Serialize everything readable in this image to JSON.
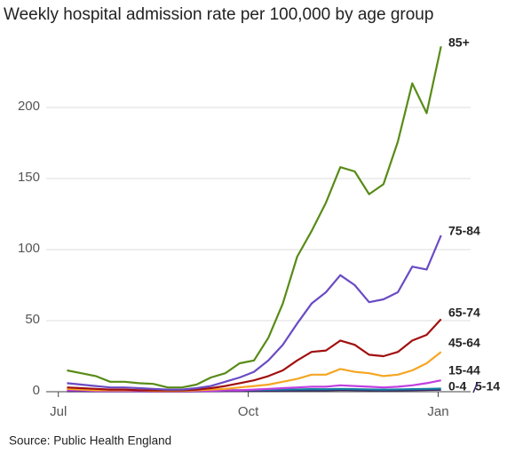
{
  "chart_data": {
    "type": "line",
    "title": "Weekly hospital admission rate per 100,000 by age group",
    "source": "Source: Public Health England",
    "x": [
      0,
      1,
      2,
      3,
      4,
      5,
      6,
      7,
      8,
      9,
      10,
      11,
      12,
      13,
      14,
      15,
      16,
      17,
      18,
      19,
      20,
      21,
      22,
      23,
      24,
      25,
      26
    ],
    "xlim": [
      -1.2,
      27.5
    ],
    "xticks": [
      {
        "value": -0.6,
        "label": "Jul"
      },
      {
        "value": 12.6,
        "label": "Oct"
      },
      {
        "value": 25.8,
        "label": "Jan"
      }
    ],
    "ylim": [
      0,
      250
    ],
    "yticks": [
      0,
      50,
      100,
      150,
      200
    ],
    "grid": true,
    "series": [
      {
        "name": "85+",
        "color": "#588b17",
        "values": [
          15,
          13,
          11,
          7,
          7,
          6,
          5.5,
          3,
          3,
          5,
          10,
          13,
          20,
          22,
          38,
          62,
          95,
          113,
          133,
          158,
          155,
          139,
          146,
          176,
          217,
          196,
          243
        ]
      },
      {
        "name": "75-84",
        "color": "#6a4bc4",
        "values": [
          6,
          5,
          4,
          3,
          3,
          2.5,
          2,
          1.5,
          1.5,
          2.5,
          4,
          7,
          10,
          14,
          22,
          33,
          48,
          62,
          70,
          82,
          75,
          63,
          65,
          70,
          88,
          86,
          110
        ]
      },
      {
        "name": "65-74",
        "color": "#a10f0f",
        "values": [
          3,
          2.5,
          2,
          1.5,
          1.5,
          1,
          1,
          1,
          1,
          1.5,
          2.5,
          4,
          6,
          8,
          11,
          15,
          22,
          28,
          29,
          36,
          33,
          26,
          25,
          28,
          36,
          40,
          51
        ]
      },
      {
        "name": "45-64",
        "color": "#f5a623",
        "values": [
          2,
          1.5,
          1,
          1,
          1,
          1,
          0.5,
          0.5,
          0.5,
          1,
          1.5,
          2,
          3,
          4,
          5,
          7,
          9,
          12,
          12,
          16,
          14,
          13,
          11,
          12,
          15,
          20,
          28
        ]
      },
      {
        "name": "15-44",
        "color": "#c13fe0",
        "values": [
          1,
          1,
          0.5,
          0.5,
          0.5,
          0.5,
          0.3,
          0.3,
          0.3,
          0.5,
          0.5,
          1,
          1,
          1.5,
          2,
          2.5,
          3,
          3.5,
          3.5,
          4.5,
          4,
          3.5,
          3,
          3.5,
          4.5,
          6,
          8
        ]
      },
      {
        "name": "0-4",
        "color": "#1380a1",
        "values": [
          1.5,
          1.2,
          1,
          0.8,
          0.8,
          0.6,
          0.5,
          0.5,
          0.5,
          0.6,
          0.8,
          1,
          1,
          1.2,
          1.3,
          1.5,
          1.6,
          1.8,
          1.7,
          2,
          1.8,
          1.6,
          1.5,
          1.6,
          1.8,
          2,
          2.2
        ]
      },
      {
        "name": "5-14",
        "color": "#3d2468",
        "values": [
          0.3,
          0.3,
          0.2,
          0.2,
          0.2,
          0.2,
          0.1,
          0.1,
          0.1,
          0.2,
          0.3,
          0.4,
          0.5,
          0.6,
          0.7,
          0.8,
          0.9,
          1,
          1,
          1.2,
          1.1,
          1,
          0.9,
          1,
          1.1,
          1.2,
          1.4
        ]
      }
    ]
  }
}
